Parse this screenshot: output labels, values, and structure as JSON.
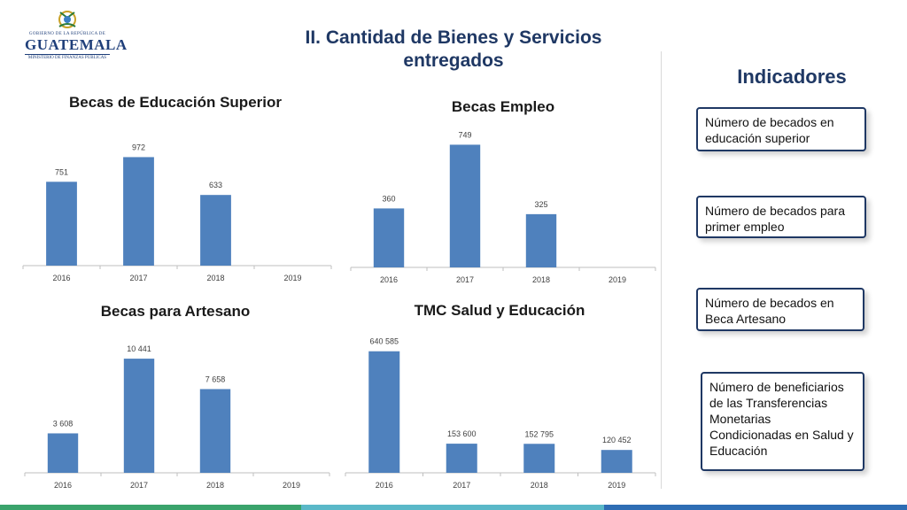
{
  "header": {
    "logo_line1": "GOBIERNO DE LA REPÚBLICA DE",
    "logo_line2": "GUATEMALA",
    "logo_line3": "MINISTERIO DE FINANZAS PÚBLICAS",
    "title_line1": "II. Cantidad de Bienes y Servicios",
    "title_line2": "entregados"
  },
  "indicators": {
    "title": "Indicadores",
    "items": [
      "Número de becados en educación superior",
      "Número de becados para primer empleo",
      "Número de becados en Beca Artesano",
      "Número de beneficiarios de las Transferencias Monetarias Condicionadas en Salud y Educación"
    ]
  },
  "colors": {
    "bar": "#4f81bd",
    "title": "#1f3864",
    "band": [
      "#3aa36b",
      "#5ab8c8",
      "#2e6db4"
    ]
  },
  "chart_data": [
    {
      "type": "bar",
      "title": "Becas de Educación Superior",
      "categories": [
        "2016",
        "2017",
        "2018",
        "2019"
      ],
      "values": [
        751,
        972,
        633,
        null
      ],
      "labels": [
        "751",
        "972",
        "633",
        ""
      ],
      "ylim": [
        0,
        1150
      ],
      "grid": false
    },
    {
      "type": "bar",
      "title": "Becas Empleo",
      "categories": [
        "2016",
        "2017",
        "2018",
        "2019"
      ],
      "values": [
        360,
        749,
        325,
        null
      ],
      "labels": [
        "360",
        "749",
        "325",
        ""
      ],
      "ylim": [
        0,
        800
      ],
      "grid": false
    },
    {
      "type": "bar",
      "title": "Becas para Artesano",
      "categories": [
        "2016",
        "2017",
        "2018",
        "2019"
      ],
      "values": [
        3608,
        10441,
        7658,
        null
      ],
      "labels": [
        "3 608",
        "10 441",
        "7 658",
        ""
      ],
      "ylim": [
        0,
        11500
      ],
      "grid": false
    },
    {
      "type": "bar",
      "title": "TMC Salud y Educación",
      "categories": [
        "2016",
        "2017",
        "2018",
        "2019"
      ],
      "values": [
        640585,
        153600,
        152795,
        120452
      ],
      "labels": [
        "640 585",
        "153 600",
        "152 795",
        "120 452"
      ],
      "ylim": [
        0,
        700000
      ],
      "grid": false
    }
  ]
}
